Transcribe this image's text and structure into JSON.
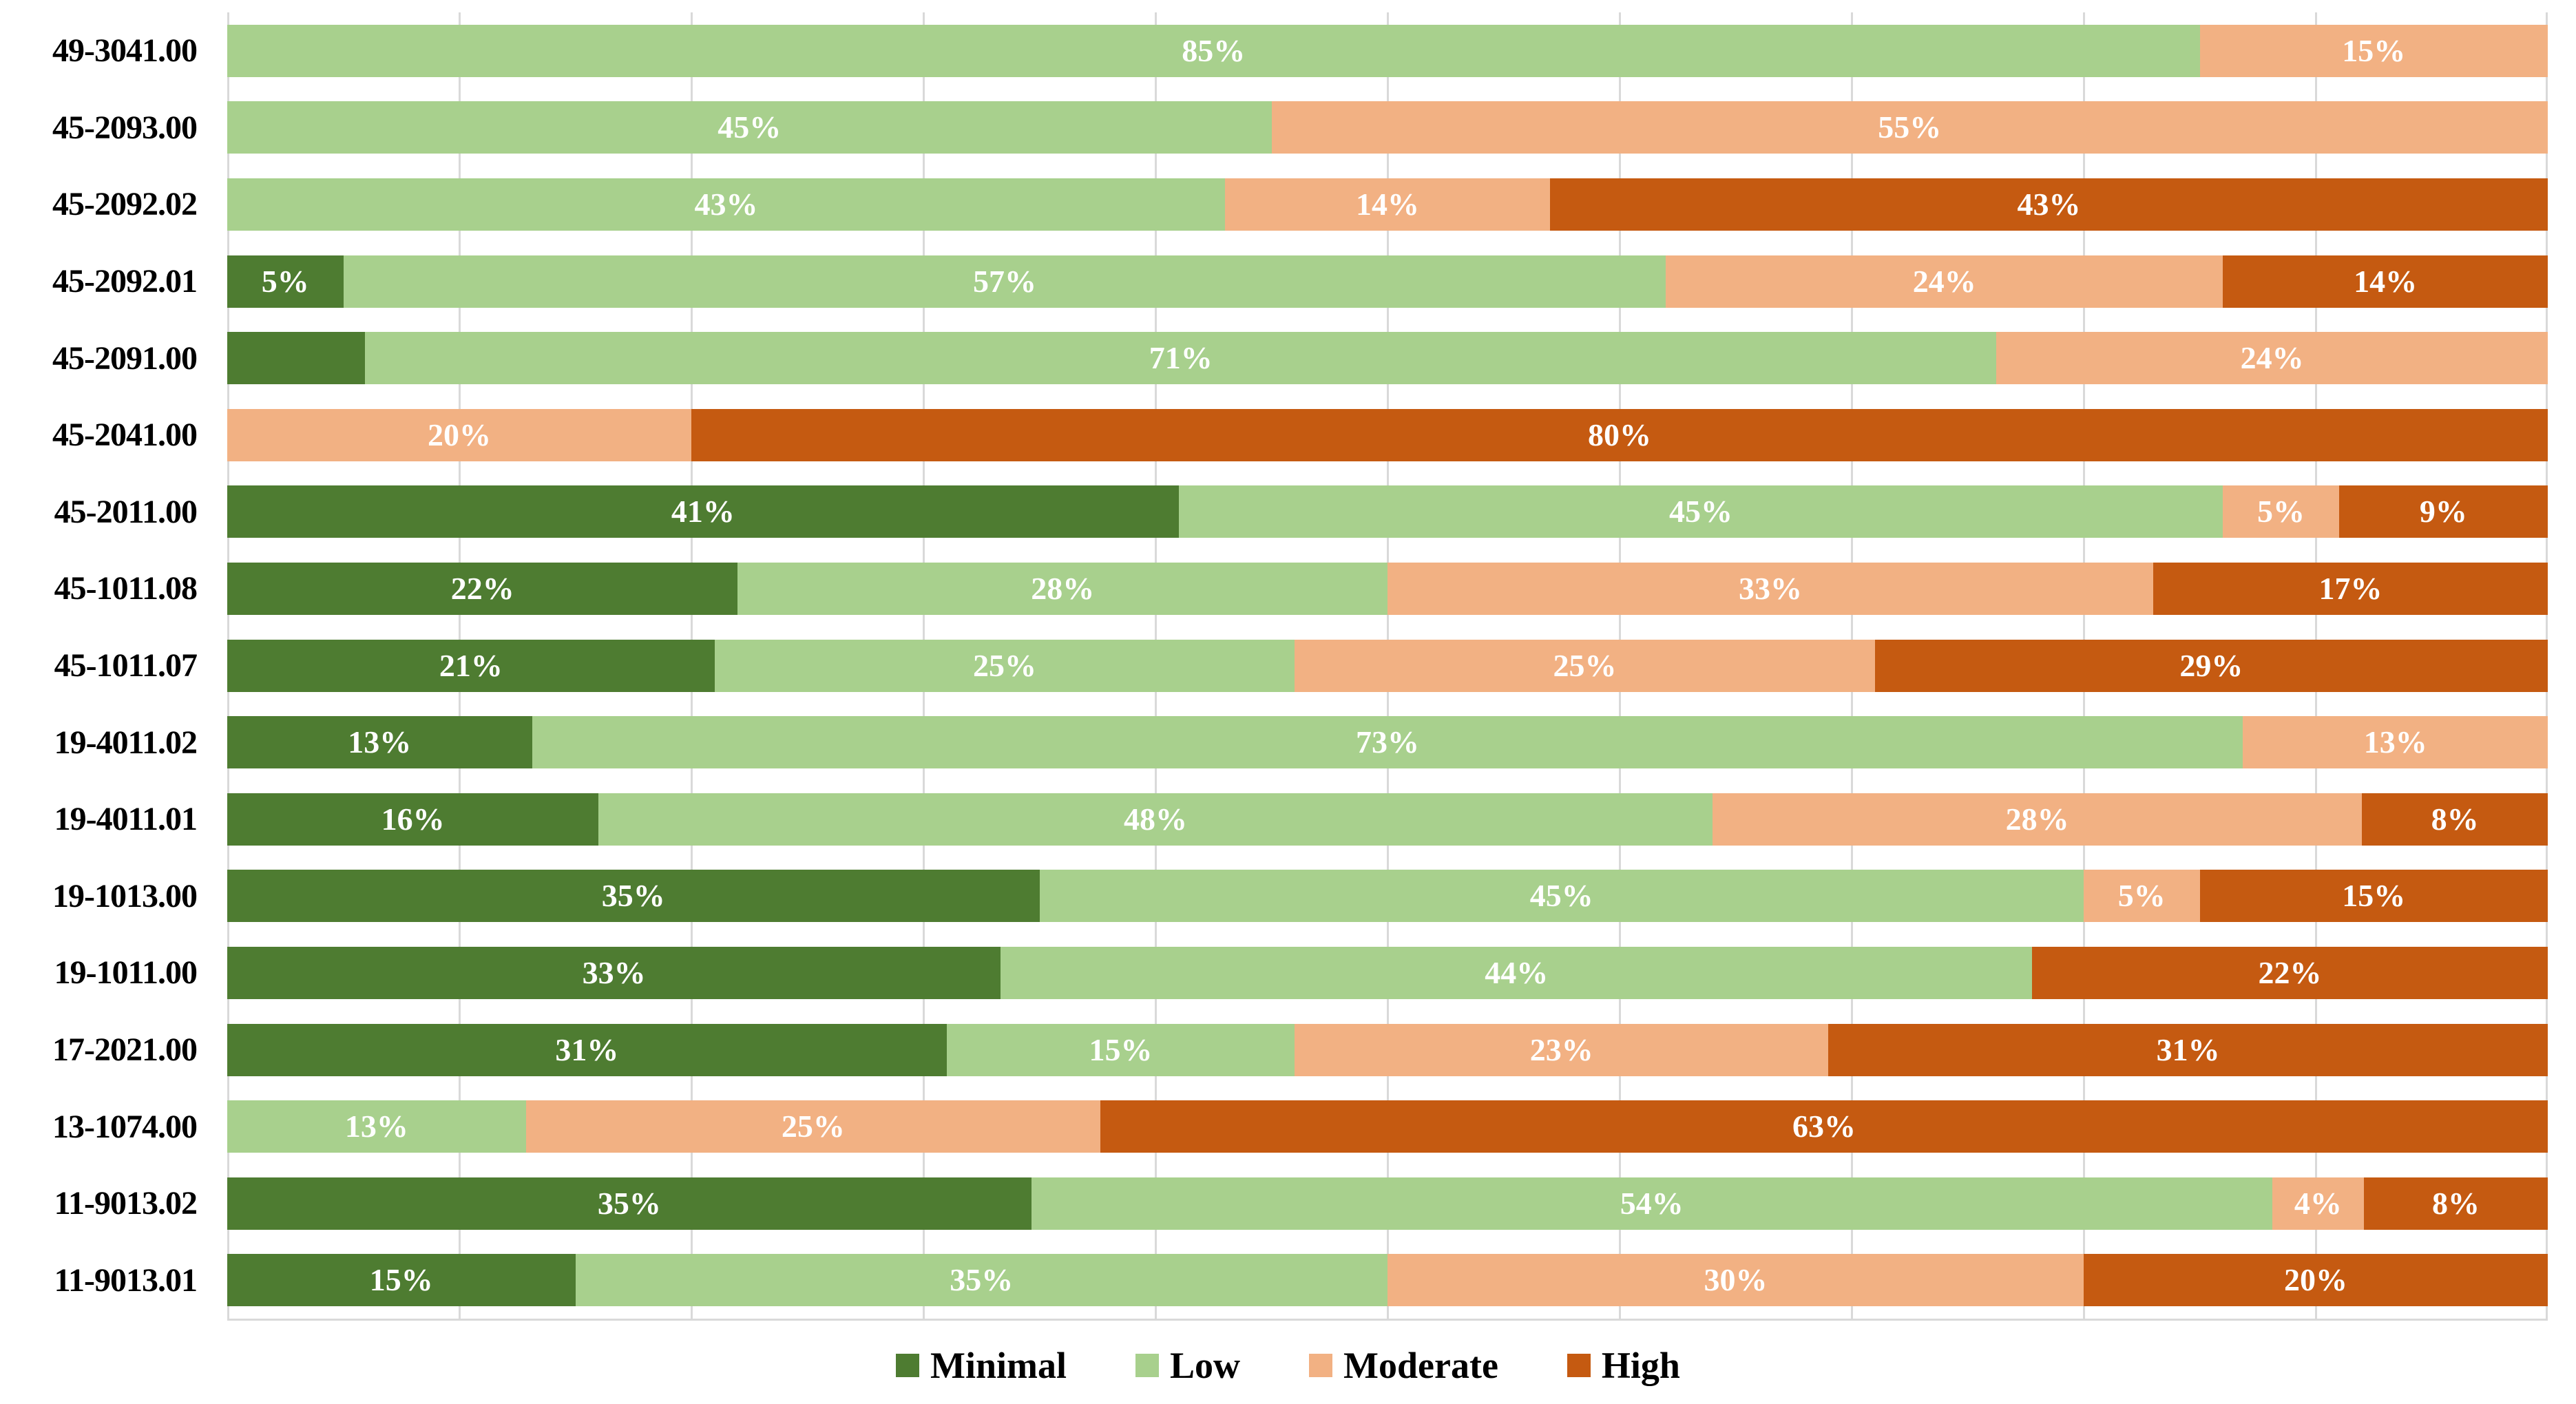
{
  "chart_data": {
    "type": "bar",
    "orientation": "horizontal",
    "stacked": true,
    "units": "percent",
    "title": "",
    "xlabel": "",
    "ylabel": "",
    "x_axis": {
      "min": 0,
      "max": 100,
      "gridline_step": 10,
      "tick_labels_visible": false
    },
    "grid": "vertical-light-gray",
    "legend_position": "bottom-center",
    "colors": {
      "gridline": "#d9d9d9",
      "data_label_text": "#ffffff",
      "category_label_text": "#000000",
      "background": "#ffffff"
    },
    "series": [
      {
        "name": "Minimal",
        "color": "#4e7c31"
      },
      {
        "name": "Low",
        "color": "#a8d08d"
      },
      {
        "name": "Moderate",
        "color": "#f2b183"
      },
      {
        "name": "High",
        "color": "#c55a11"
      }
    ],
    "categories": [
      "49-3041.00",
      "45-2093.00",
      "45-2092.02",
      "45-2092.01",
      "45-2091.00",
      "45-2041.00",
      "45-2011.00",
      "45-1011.08",
      "45-1011.07",
      "19-4011.02",
      "19-4011.01",
      "19-1013.00",
      "19-1011.00",
      "17-2021.00",
      "13-1074.00",
      "11-9013.02",
      "11-9013.01"
    ],
    "rows": [
      {
        "category": "49-3041.00",
        "segments": [
          {
            "series": "Low",
            "value": 85,
            "label": "85%"
          },
          {
            "series": "Moderate",
            "value": 15,
            "label": "15%"
          }
        ]
      },
      {
        "category": "45-2093.00",
        "segments": [
          {
            "series": "Low",
            "value": 45,
            "label": "45%"
          },
          {
            "series": "Moderate",
            "value": 55,
            "label": "55%"
          }
        ]
      },
      {
        "category": "45-2092.02",
        "segments": [
          {
            "series": "Low",
            "value": 43,
            "label": "43%"
          },
          {
            "series": "Moderate",
            "value": 14,
            "label": "14%"
          },
          {
            "series": "High",
            "value": 43,
            "label": "43%"
          }
        ]
      },
      {
        "category": "45-2092.01",
        "segments": [
          {
            "series": "Minimal",
            "value": 5,
            "label": "5%"
          },
          {
            "series": "Low",
            "value": 57,
            "label": "57%"
          },
          {
            "series": "Moderate",
            "value": 24,
            "label": "24%"
          },
          {
            "series": "High",
            "value": 14,
            "label": "14%"
          }
        ]
      },
      {
        "category": "45-2091.00",
        "segments": [
          {
            "series": "Minimal",
            "value": 6,
            "label": ""
          },
          {
            "series": "Low",
            "value": 71,
            "label": "71%"
          },
          {
            "series": "Moderate",
            "value": 24,
            "label": "24%"
          }
        ]
      },
      {
        "category": "45-2041.00",
        "segments": [
          {
            "series": "Moderate",
            "value": 20,
            "label": "20%"
          },
          {
            "series": "High",
            "value": 80,
            "label": "80%"
          }
        ]
      },
      {
        "category": "45-2011.00",
        "segments": [
          {
            "series": "Minimal",
            "value": 41,
            "label": "41%"
          },
          {
            "series": "Low",
            "value": 45,
            "label": "45%"
          },
          {
            "series": "Moderate",
            "value": 5,
            "label": "5%"
          },
          {
            "series": "High",
            "value": 9,
            "label": "9%"
          }
        ]
      },
      {
        "category": "45-1011.08",
        "segments": [
          {
            "series": "Minimal",
            "value": 22,
            "label": "22%"
          },
          {
            "series": "Low",
            "value": 28,
            "label": "28%"
          },
          {
            "series": "Moderate",
            "value": 33,
            "label": "33%"
          },
          {
            "series": "High",
            "value": 17,
            "label": "17%"
          }
        ]
      },
      {
        "category": "45-1011.07",
        "segments": [
          {
            "series": "Minimal",
            "value": 21,
            "label": "21%"
          },
          {
            "series": "Low",
            "value": 25,
            "label": "25%"
          },
          {
            "series": "Moderate",
            "value": 25,
            "label": "25%"
          },
          {
            "series": "High",
            "value": 29,
            "label": "29%"
          }
        ]
      },
      {
        "category": "19-4011.02",
        "segments": [
          {
            "series": "Minimal",
            "value": 13,
            "label": "13%"
          },
          {
            "series": "Low",
            "value": 73,
            "label": "73%"
          },
          {
            "series": "Moderate",
            "value": 13,
            "label": "13%"
          }
        ]
      },
      {
        "category": "19-4011.01",
        "segments": [
          {
            "series": "Minimal",
            "value": 16,
            "label": "16%"
          },
          {
            "series": "Low",
            "value": 48,
            "label": "48%"
          },
          {
            "series": "Moderate",
            "value": 28,
            "label": "28%"
          },
          {
            "series": "High",
            "value": 8,
            "label": "8%"
          }
        ]
      },
      {
        "category": "19-1013.00",
        "segments": [
          {
            "series": "Minimal",
            "value": 35,
            "label": "35%"
          },
          {
            "series": "Low",
            "value": 45,
            "label": "45%"
          },
          {
            "series": "Moderate",
            "value": 5,
            "label": "5%"
          },
          {
            "series": "High",
            "value": 15,
            "label": "15%"
          }
        ]
      },
      {
        "category": "19-1011.00",
        "segments": [
          {
            "series": "Minimal",
            "value": 33,
            "label": "33%"
          },
          {
            "series": "Low",
            "value": 44,
            "label": "44%"
          },
          {
            "series": "High",
            "value": 22,
            "label": "22%"
          }
        ]
      },
      {
        "category": "17-2021.00",
        "segments": [
          {
            "series": "Minimal",
            "value": 31,
            "label": "31%"
          },
          {
            "series": "Low",
            "value": 15,
            "label": "15%"
          },
          {
            "series": "Moderate",
            "value": 23,
            "label": "23%"
          },
          {
            "series": "High",
            "value": 31,
            "label": "31%"
          }
        ]
      },
      {
        "category": "13-1074.00",
        "segments": [
          {
            "series": "Low",
            "value": 13,
            "label": "13%"
          },
          {
            "series": "Moderate",
            "value": 25,
            "label": "25%"
          },
          {
            "series": "High",
            "value": 63,
            "label": "63%"
          }
        ]
      },
      {
        "category": "11-9013.02",
        "segments": [
          {
            "series": "Minimal",
            "value": 35,
            "label": "35%"
          },
          {
            "series": "Low",
            "value": 54,
            "label": "54%"
          },
          {
            "series": "Moderate",
            "value": 4,
            "label": "4%"
          },
          {
            "series": "High",
            "value": 8,
            "label": "8%"
          }
        ]
      },
      {
        "category": "11-9013.01",
        "segments": [
          {
            "series": "Minimal",
            "value": 15,
            "label": "15%"
          },
          {
            "series": "Low",
            "value": 35,
            "label": "35%"
          },
          {
            "series": "Moderate",
            "value": 30,
            "label": "30%"
          },
          {
            "series": "High",
            "value": 20,
            "label": "20%"
          }
        ]
      }
    ]
  }
}
